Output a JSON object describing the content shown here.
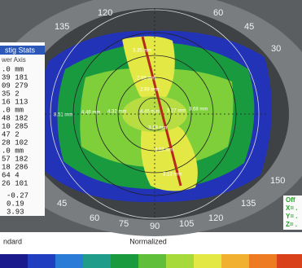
{
  "axis_degrees": {
    "top": [
      "120",
      "60",
      "135",
      "45",
      "30",
      "150"
    ],
    "bottom": [
      "45",
      "60",
      "75",
      "90",
      "105",
      "120",
      "135"
    ]
  },
  "left_panel": {
    "title": "stig Stats",
    "header": "wer  Axis",
    "rows": [
      ".0 mm",
      "39  181",
      "09  279",
      "35     2",
      "16  113",
      ".0 mm",
      "48  182",
      "10  285",
      "47     2",
      "28  102",
      ".0 mm",
      "57  182",
      "18  286",
      "64     4",
      "26  101"
    ],
    "summary": [
      "-0.27",
      "0.19",
      "3.93"
    ]
  },
  "map_labels": [
    "3.35 mm",
    "2.85 mm",
    "2.99 mm",
    "8.51 mm",
    "4.46 mm",
    "4.32 mm",
    "4.45 mm",
    "3.27 mm",
    "3.68 mm",
    "3.19 mm",
    "3.18 mm",
    "3.13 mm"
  ],
  "right_panel": [
    "Off",
    "X= .",
    "Y= .",
    "Z= ."
  ],
  "footer": {
    "left": "ndard",
    "center": "Normalized"
  }
}
